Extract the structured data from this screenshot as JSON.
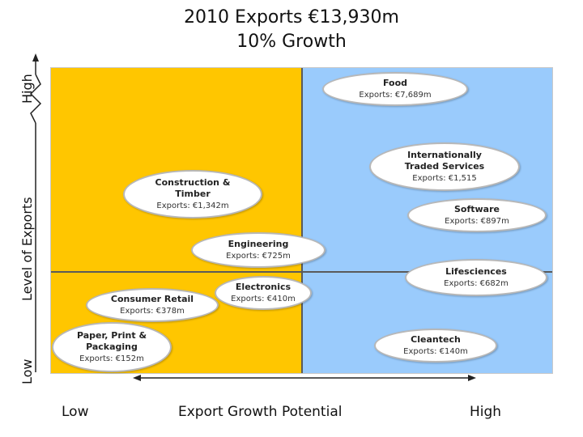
{
  "title": {
    "line1": "2010 Exports €13,930m",
    "line2": "10% Growth"
  },
  "y_axis": {
    "label": "Level of Exports",
    "low": "Low",
    "high": "High"
  },
  "x_axis": {
    "label": "Export Growth Potential",
    "low": "Low",
    "high": "High"
  },
  "colors": {
    "left_quadrant": "#ffc600",
    "right_quadrant": "#9acbfc"
  },
  "sectors": [
    {
      "name_lines": [
        "Food"
      ],
      "exports": "Exports: €7,689m"
    },
    {
      "name_lines": [
        "Internationally",
        "Traded Services"
      ],
      "exports": "Exports: €1,515"
    },
    {
      "name_lines": [
        "Construction &",
        "Timber"
      ],
      "exports": "Exports: €1,342m"
    },
    {
      "name_lines": [
        "Software"
      ],
      "exports": "Exports: €897m"
    },
    {
      "name_lines": [
        "Engineering"
      ],
      "exports": "Exports: €725m"
    },
    {
      "name_lines": [
        "Lifesciences"
      ],
      "exports": "Exports: €682m"
    },
    {
      "name_lines": [
        "Electronics"
      ],
      "exports": "Exports: €410m"
    },
    {
      "name_lines": [
        "Consumer Retail"
      ],
      "exports": "Exports: €378m"
    },
    {
      "name_lines": [
        "Paper, Print &",
        "Packaging"
      ],
      "exports": "Exports: €152m"
    },
    {
      "name_lines": [
        "Cleantech"
      ],
      "exports": "Exports: €140m"
    }
  ]
}
